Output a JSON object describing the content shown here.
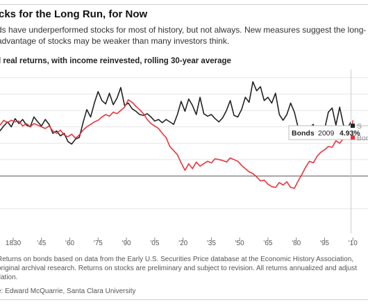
{
  "header": {
    "title": "cks for the Long Run, for Now",
    "subtitle_lines": [
      "ds have underperformed stocks for most of history, but not always. New measures suggest the long-",
      "advantage of stocks may be weaker than many investors think."
    ]
  },
  "chart_label": "l real returns, with income reinvested, rolling 30-year average",
  "footnote_lines": [
    "Returns on bonds based on data from the Early U.S. Securities Price database at the Economic History Association,",
    "original archival research. Returns on stocks are preliminary and subject to revision. All returns annualized and adjust",
    "flation."
  ],
  "source": "e: Edward McQuarrie, Santa Clara University",
  "tooltip": {
    "series": "Bonds",
    "year": "2009",
    "value": "4.93%"
  },
  "legend": [
    "S",
    "Bon"
  ],
  "colors": {
    "stocks": "#222222",
    "bonds": "#e8333c",
    "grid": "#e6e6e6",
    "zero_line": "#555555"
  },
  "chart_data": {
    "type": "line",
    "title": "",
    "xlabel": "",
    "ylabel": "",
    "x_ticks": [
      "1830",
      "'45",
      "'60",
      "'75",
      "'90",
      "'05",
      "'20",
      "'35",
      "'50",
      "'65",
      "'80",
      "'95",
      "'10"
    ],
    "x_tick_values": [
      1830,
      1845,
      1860,
      1875,
      1890,
      1905,
      1920,
      1935,
      1950,
      1965,
      1980,
      1995,
      2010
    ],
    "xlim": [
      1823,
      2018
    ],
    "ylim": [
      -7,
      13
    ],
    "y_gridlines": [
      -4,
      0,
      2,
      4,
      6,
      8,
      10,
      12
    ],
    "zero_line": 0,
    "series": [
      {
        "name": "S",
        "color": "#222222",
        "x": [
          1823,
          1825,
          1827,
          1829,
          1831,
          1833,
          1835,
          1837,
          1839,
          1841,
          1843,
          1845,
          1847,
          1849,
          1851,
          1853,
          1855,
          1857,
          1859,
          1861,
          1863,
          1865,
          1867,
          1869,
          1871,
          1873,
          1875,
          1877,
          1879,
          1881,
          1883,
          1885,
          1887,
          1889,
          1891,
          1893,
          1895,
          1897,
          1899,
          1901,
          1903,
          1905,
          1907,
          1909,
          1911,
          1913,
          1915,
          1917,
          1919,
          1921,
          1923,
          1925,
          1927,
          1929,
          1931,
          1933,
          1935,
          1937,
          1939,
          1941,
          1943,
          1945,
          1947,
          1949,
          1951,
          1953,
          1955,
          1957,
          1959,
          1961,
          1963,
          1965,
          1967,
          1969,
          1971,
          1973,
          1975,
          1977,
          1979,
          1981,
          1983,
          1985,
          1987,
          1989,
          1991,
          1993,
          1995,
          1997,
          1999,
          2001,
          2003,
          2005,
          2007,
          2009
        ],
        "values": [
          5.5,
          6.1,
          6.6,
          6.0,
          7.0,
          6.4,
          6.9,
          6.2,
          6.0,
          7.2,
          6.6,
          6.1,
          6.9,
          6.3,
          5.2,
          5.5,
          4.9,
          5.2,
          4.2,
          3.9,
          4.5,
          4.7,
          6.5,
          8.1,
          7.2,
          8.9,
          10.3,
          9.2,
          8.8,
          10.1,
          8.7,
          9.5,
          10.8,
          8.6,
          8.9,
          8.2,
          7.9,
          7.5,
          7.4,
          7.6,
          7.2,
          6.7,
          6.9,
          6.5,
          6.9,
          6.6,
          6.3,
          7.5,
          9.1,
          7.9,
          9.4,
          8.6,
          7.5,
          9.6,
          7.6,
          7.3,
          7.5,
          7.0,
          6.6,
          7.1,
          8.0,
          9.2,
          7.4,
          7.2,
          8.1,
          9.6,
          9.0,
          11.5,
          10.4,
          10.9,
          9.2,
          9.6,
          8.9,
          10.1,
          7.5,
          6.8,
          7.5,
          8.9,
          7.8,
          5.9,
          5.3,
          6.1,
          5.9,
          6.3,
          4.9,
          5.0,
          5.7,
          7.8,
          8.3,
          6.2,
          8.4,
          6.2,
          5.8,
          6.6
        ]
      },
      {
        "name": "Bon",
        "color": "#e8333c",
        "x": [
          1823,
          1825,
          1827,
          1829,
          1831,
          1833,
          1835,
          1837,
          1839,
          1841,
          1843,
          1845,
          1847,
          1849,
          1851,
          1853,
          1855,
          1857,
          1859,
          1861,
          1863,
          1865,
          1867,
          1869,
          1871,
          1873,
          1875,
          1877,
          1879,
          1881,
          1883,
          1885,
          1887,
          1889,
          1891,
          1893,
          1895,
          1897,
          1899,
          1901,
          1903,
          1905,
          1907,
          1909,
          1911,
          1913,
          1915,
          1917,
          1919,
          1921,
          1923,
          1925,
          1927,
          1929,
          1931,
          1933,
          1935,
          1937,
          1939,
          1941,
          1943,
          1945,
          1947,
          1949,
          1951,
          1953,
          1955,
          1957,
          1959,
          1961,
          1963,
          1965,
          1967,
          1969,
          1971,
          1973,
          1975,
          1977,
          1979,
          1981,
          1983,
          1985,
          1987,
          1989,
          1991,
          1993,
          1995,
          1997,
          1999,
          2001,
          2003,
          2005,
          2007,
          2009,
          2010
        ],
        "values": [
          6.2,
          6.8,
          6.5,
          6.8,
          6.6,
          6.7,
          6.1,
          6.4,
          6.0,
          6.4,
          6.2,
          6.0,
          5.8,
          6.1,
          5.5,
          5.2,
          5.6,
          5.0,
          4.8,
          5.1,
          4.6,
          5.0,
          5.6,
          6.0,
          6.3,
          6.6,
          6.8,
          7.2,
          7.5,
          7.3,
          7.8,
          7.6,
          8.0,
          8.4,
          9.3,
          9.0,
          8.5,
          8.1,
          7.6,
          6.9,
          6.4,
          6.1,
          5.8,
          5.2,
          4.7,
          3.6,
          3.1,
          2.6,
          1.6,
          0.7,
          1.5,
          0.9,
          1.7,
          1.2,
          1.5,
          1.8,
          1.6,
          2.1,
          2.0,
          1.9,
          1.7,
          2.2,
          2.0,
          1.8,
          1.3,
          0.9,
          0.5,
          0.3,
          -0.1,
          -0.6,
          -0.5,
          -1.0,
          -1.3,
          -1.4,
          -0.8,
          -1.1,
          -0.7,
          -1.4,
          -1.5,
          -0.6,
          0.2,
          1.1,
          1.8,
          1.6,
          2.4,
          2.9,
          3.2,
          3.6,
          3.5,
          4.3,
          4.0,
          4.6,
          4.5,
          4.93,
          6.8
        ]
      }
    ]
  }
}
